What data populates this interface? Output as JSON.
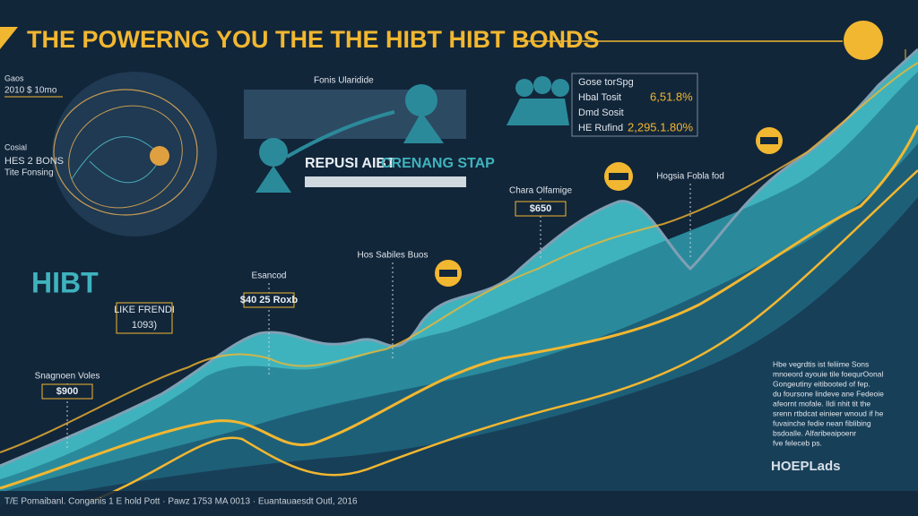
{
  "header": {
    "title": "THE POWERNG YOU THE THE HIBT HIBT BONDS"
  },
  "left_panel": {
    "top_labels": [
      "Gaos",
      "2010 $ 10mo",
      "Cosial",
      "HES 2 BONS",
      "Tite Fonsing"
    ],
    "logo": "HIBT",
    "box_lines": [
      "LIKE FRENDI",
      "1093)"
    ]
  },
  "banner": {
    "heading": "Fonis Ularidide",
    "title": "REPUSI AIBT",
    "subtitle": "CRENANG STAP"
  },
  "callouts": [
    {
      "label": "Snagnoen Voles",
      "value": "$900"
    },
    {
      "label": "Esancod",
      "value": "$40 25 Roxb"
    },
    {
      "label": "Hos Sabiles Buos"
    },
    {
      "label": "Chara Olfamige",
      "value": "$650"
    },
    {
      "label": "Hogsia Fobla fod"
    }
  ],
  "stats": {
    "rows": [
      [
        "Gose torSpg",
        ""
      ],
      [
        "Hbal Tosit",
        "6,51.8%"
      ],
      [
        "Dmd Sosit",
        ""
      ],
      [
        "HE Rufind",
        "2,295.1.80%"
      ]
    ]
  },
  "notes": {
    "lines": [
      "Hbe vegrdtis ist feliime Sons",
      "mnoeord ayouie tile foequrOonal",
      "Gongeutiny eitibooted of fep.",
      "du foursone lindeve ane Fedeoie",
      "afeornt mofale. Ildi nhit tit the",
      "srenn rtbdcat einieer wnoud if he",
      "fuvainche fedie nean fiblibing",
      "bsdoalle. Alfaribeaipoenr",
      "fve feleceb ps."
    ]
  },
  "brand": "HOEPLads",
  "footer": "T/E Pomaibanl. Conganis 1 E hold Pott · Pawz 1753 MA 0013 · Euantauaesdt Outl, 2016"
}
